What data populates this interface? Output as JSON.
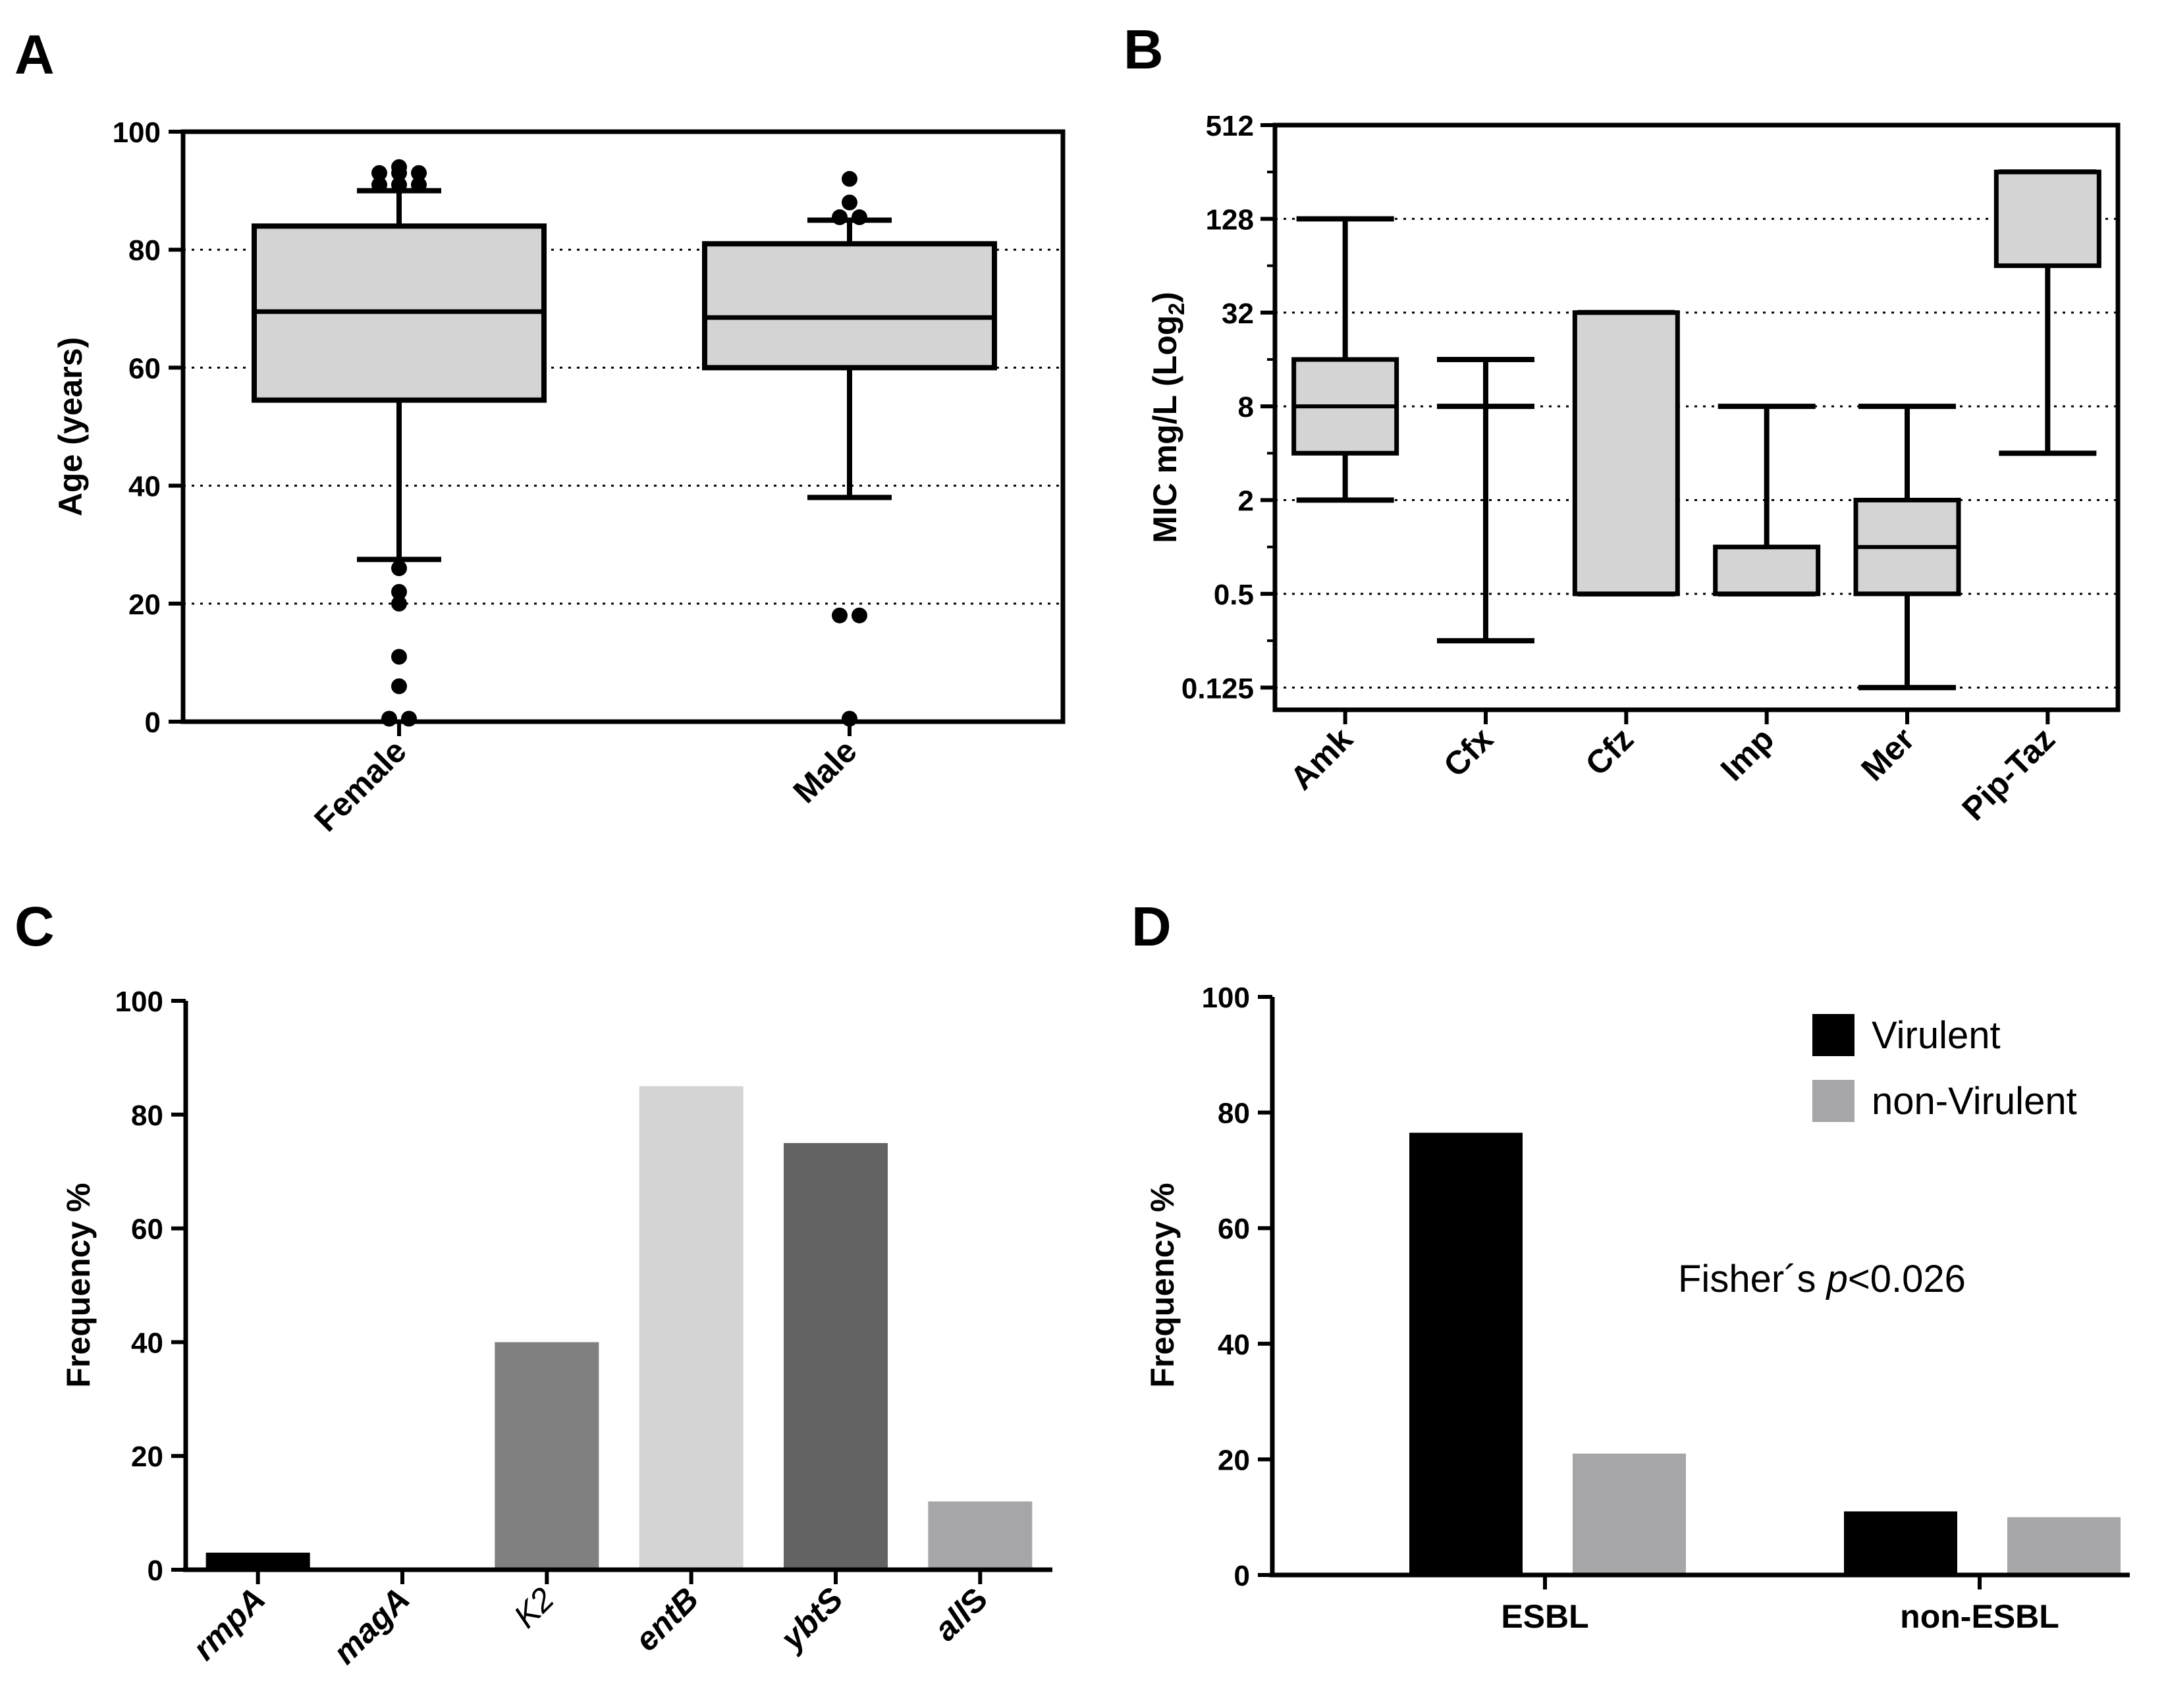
{
  "figure": {
    "panels": [
      "A",
      "B",
      "C",
      "D"
    ]
  },
  "chart_data": [
    {
      "panel": "A",
      "type": "box",
      "title": "",
      "xlabel": "",
      "ylabel": "Age (years)",
      "ylim": [
        0,
        100
      ],
      "yticks": [
        "0",
        "20",
        "40",
        "60",
        "80",
        "100"
      ],
      "ytick_values": [
        0,
        20,
        40,
        60,
        80,
        100
      ],
      "gridlines": [
        20,
        40,
        60,
        80
      ],
      "categories": [
        "Female",
        "Male"
      ],
      "boxes": [
        {
          "name": "Female",
          "q1": 54.5,
          "median": 69.5,
          "q3": 84,
          "whisker_low": 27.5,
          "whisker_high": 90,
          "outliers": [
            93,
            93,
            91,
            91,
            91,
            93,
            94,
            26,
            22,
            20,
            11,
            6,
            0.5,
            0.5
          ]
        },
        {
          "name": "Male",
          "q1": 60,
          "median": 68.5,
          "q3": 81,
          "whisker_low": 38,
          "whisker_high": 85,
          "outliers": [
            92,
            88,
            85.5,
            85.5,
            18,
            18,
            0.5
          ]
        }
      ],
      "box_color": "#d4d4d4"
    },
    {
      "panel": "B",
      "type": "box",
      "title": "",
      "xlabel": "",
      "ylabel_main": "MIC mg/L (Log",
      "ylabel_sub": "2",
      "ylabel_end": ")",
      "yscale": "log2",
      "ylim": [
        0.09,
        512
      ],
      "yticks": [
        "0.125",
        "0.5",
        "2",
        "8",
        "32",
        "128",
        "512"
      ],
      "ytick_values": [
        0.125,
        0.5,
        2,
        8,
        32,
        128,
        512
      ],
      "gridlines": [
        0.125,
        0.5,
        2,
        8,
        32,
        128
      ],
      "categories": [
        "Amk",
        "Cfx",
        "Cfz",
        "Imp",
        "Mer",
        "Pip-Taz"
      ],
      "boxes": [
        {
          "name": "Amk",
          "whisker_low": 2,
          "q1": 4,
          "median": 8,
          "q3": 16,
          "whisker_high": 128
        },
        {
          "name": "Cfx",
          "whisker_low": 0.25,
          "q1": 8,
          "median": 8,
          "q3": 8,
          "whisker_high": 16
        },
        {
          "name": "Cfz",
          "whisker_low": 0.5,
          "q1": 0.5,
          "median": 32,
          "q3": 32,
          "whisker_high": 32
        },
        {
          "name": "Imp",
          "whisker_low": 0.5,
          "q1": 0.5,
          "median": 1,
          "q3": 1,
          "whisker_high": 8
        },
        {
          "name": "Mer",
          "whisker_low": 0.125,
          "q1": 0.5,
          "median": 1,
          "q3": 2,
          "whisker_high": 8
        },
        {
          "name": "Pip-Taz",
          "whisker_low": 4,
          "q1": 64,
          "median": 256,
          "q3": 256,
          "whisker_high": 256
        }
      ],
      "box_color": "#d4d4d4"
    },
    {
      "panel": "C",
      "type": "bar",
      "title": "",
      "xlabel": "",
      "ylabel": "Frequency %",
      "ylim": [
        0,
        100
      ],
      "yticks": [
        "0",
        "20",
        "40",
        "60",
        "80",
        "100"
      ],
      "ytick_values": [
        0,
        20,
        40,
        60,
        80,
        100
      ],
      "categories": [
        "rmpA",
        "magA",
        "K2",
        "entB",
        "ybtS",
        "allS"
      ],
      "category_labels": [
        {
          "parts": [
            {
              "text": "rmpA",
              "italic": true
            }
          ]
        },
        {
          "parts": [
            {
              "text": "magA",
              "italic": true
            }
          ]
        },
        {
          "parts": [
            {
              "text": "K2",
              "italic": true,
              "light": true
            }
          ]
        },
        {
          "parts": [
            {
              "text": "entB",
              "italic": true
            }
          ]
        },
        {
          "parts": [
            {
              "text": "ybtS",
              "italic": true
            }
          ]
        },
        {
          "parts": [
            {
              "text": "all",
              "italic": true
            },
            {
              "text": "S",
              "italic": false
            }
          ]
        }
      ],
      "values": [
        3,
        0,
        40,
        85,
        75,
        12
      ],
      "colors": [
        "#000000",
        "#000000",
        "#808080",
        "#d4d4d4",
        "#636363",
        "#a6a6a8"
      ]
    },
    {
      "panel": "D",
      "type": "bar",
      "title": "",
      "xlabel": "",
      "ylabel": "Frequency %",
      "ylim": [
        0,
        100
      ],
      "yticks": [
        "0",
        "20",
        "40",
        "60",
        "80",
        "100"
      ],
      "ytick_values": [
        0,
        20,
        40,
        60,
        80,
        100
      ],
      "categories": [
        "ESBL",
        "non-ESBL"
      ],
      "series": [
        {
          "name": "Virulent",
          "values": [
            76.5,
            11
          ],
          "color": "#000000"
        },
        {
          "name": "non-Virulent",
          "values": [
            21,
            10
          ],
          "color": "#a6a6a8"
        }
      ],
      "legend": "top-right",
      "annotation_text": "Fisher´s ",
      "annotation_italic": "p",
      "annotation_end": "<0.026"
    }
  ]
}
